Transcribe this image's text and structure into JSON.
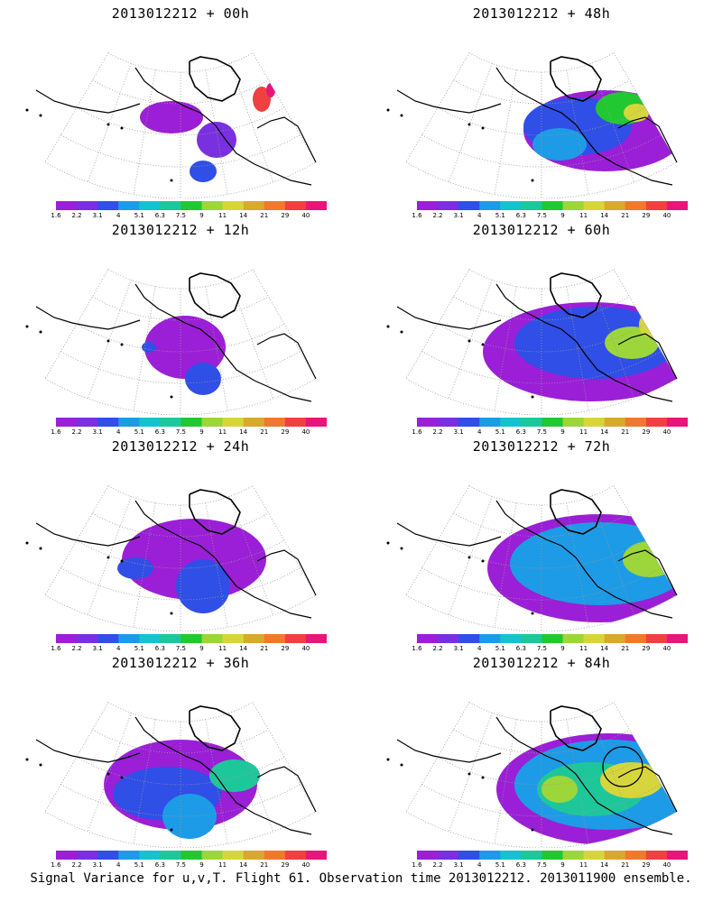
{
  "figure": {
    "footer": "Signal Variance for u,v,T. Flight 61. Observation time 2013012212. 2013011900 ensemble."
  },
  "colorbar": {
    "labels": [
      "1.6",
      "2.2",
      "3.1",
      "4",
      "5.1",
      "6.3",
      "7.5",
      "9",
      "11",
      "14",
      "21",
      "29",
      "40"
    ],
    "colors": [
      "#9b1fd6",
      "#7a2fe0",
      "#2f4fe6",
      "#1d9be6",
      "#16c2d0",
      "#1ec79a",
      "#22c832",
      "#9cd63a",
      "#d6d63c",
      "#d9a82e",
      "#ef7a2d",
      "#f04040",
      "#e8157a"
    ]
  },
  "panels": [
    {
      "id": "p00",
      "title": "2013012212 + 00h",
      "lead_hours": 0
    },
    {
      "id": "p48",
      "title": "2013012212 + 48h",
      "lead_hours": 48
    },
    {
      "id": "p12",
      "title": "2013012212 + 12h",
      "lead_hours": 12
    },
    {
      "id": "p60",
      "title": "2013012212 + 60h",
      "lead_hours": 60
    },
    {
      "id": "p24",
      "title": "2013012212 + 24h",
      "lead_hours": 24
    },
    {
      "id": "p72",
      "title": "2013012212 + 72h",
      "lead_hours": 72
    },
    {
      "id": "p36",
      "title": "2013012212 + 36h",
      "lead_hours": 36
    },
    {
      "id": "p84",
      "title": "2013012212 + 84h",
      "lead_hours": 84
    }
  ]
}
